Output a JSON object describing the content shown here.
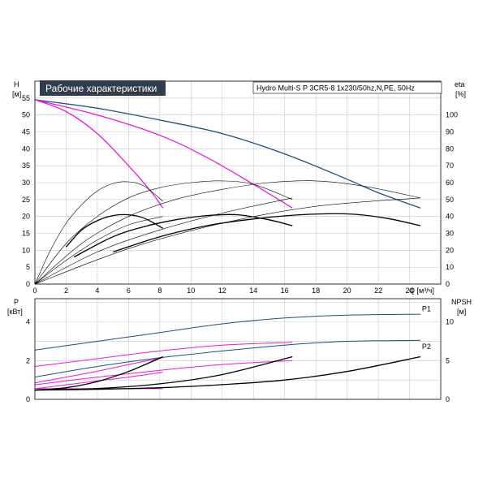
{
  "chart_data": [
    {
      "type": "line",
      "title": "Рабочие характеристики",
      "subtitle": "Hydro Multi-S P 3CR5-8 1x230/50hz,N,PE, 50Hz",
      "xlabel": "Q [м³/ч]",
      "ylabel": "H",
      "ylabel_unit": "[м]",
      "y2label": "eta",
      "y2label_unit": "[%]",
      "xlim": [
        0,
        26
      ],
      "ylim": [
        0,
        60
      ],
      "y2lim": [
        0,
        120
      ],
      "x_ticks": [
        "0",
        "2",
        "4",
        "6",
        "8",
        "10",
        "12",
        "14",
        "16",
        "18",
        "20",
        "22",
        "24"
      ],
      "y_ticks": [
        "0",
        "5",
        "10",
        "15",
        "20",
        "25",
        "30",
        "35",
        "40",
        "45",
        "50",
        "55"
      ],
      "y2_ticks": [
        "0",
        "10",
        "20",
        "30",
        "40",
        "50",
        "60",
        "70",
        "80",
        "90",
        "100"
      ],
      "grid": true,
      "colors": {
        "h_max": "#1d4e7e",
        "h_part": "#e81cd6",
        "eta": "#000000"
      },
      "series": [
        {
          "axis": "left",
          "role": "h_max",
          "x": [
            0,
            4,
            8,
            12,
            16,
            20,
            22,
            24.7
          ],
          "y": [
            54.5,
            52,
            48.5,
            44.5,
            38.5,
            31,
            27,
            22.5
          ]
        },
        {
          "axis": "left",
          "role": "h_part",
          "x": [
            0,
            4,
            8,
            11,
            14,
            16.5
          ],
          "y": [
            54.5,
            50,
            44,
            37.5,
            29.5,
            22.5
          ]
        },
        {
          "axis": "left",
          "role": "h_part",
          "x": [
            0,
            2,
            4,
            6,
            7.5,
            8.2
          ],
          "y": [
            54.5,
            51,
            44.5,
            35,
            27,
            22.5
          ]
        },
        {
          "axis": "right",
          "role": "eta",
          "thin": false,
          "x": [
            2.5,
            5,
            7,
            9,
            11,
            13,
            15,
            16.5
          ],
          "y": [
            16,
            28,
            34,
            38,
            40.5,
            41,
            38,
            34.5
          ]
        },
        {
          "axis": "right",
          "role": "eta",
          "thin": false,
          "x": [
            5,
            8,
            11,
            14,
            17,
            20,
            22.5,
            24.7
          ],
          "y": [
            19,
            28,
            34.5,
            38.5,
            41,
            41.5,
            39,
            34.5
          ]
        },
        {
          "axis": "right",
          "role": "eta",
          "thin": false,
          "x": [
            2,
            3,
            4,
            5,
            6,
            7,
            8.2
          ],
          "y": [
            22,
            32,
            37.5,
            40.5,
            41,
            39,
            33
          ]
        },
        {
          "axis": "right",
          "role": "eta",
          "thin": true,
          "x": [
            0,
            1,
            2,
            3,
            4,
            5,
            6,
            7,
            8.2
          ],
          "y": [
            0,
            20,
            36,
            47,
            55,
            59.5,
            60.5,
            58,
            49
          ]
        },
        {
          "axis": "right",
          "role": "eta",
          "thin": true,
          "x": [
            0,
            2,
            4,
            6,
            8,
            10,
            12,
            14,
            16.5
          ],
          "y": [
            0,
            24,
            40,
            51,
            57,
            60,
            61,
            59,
            50
          ]
        },
        {
          "axis": "right",
          "role": "eta",
          "thin": true,
          "x": [
            0,
            3,
            6,
            9,
            12,
            15,
            18,
            21,
            24.7
          ],
          "y": [
            0,
            24,
            40,
            50,
            56,
            60,
            61,
            58,
            51
          ]
        },
        {
          "axis": "right",
          "role": "eta",
          "thin": true,
          "x": [
            0,
            2,
            4,
            6,
            8.2
          ],
          "y": [
            0,
            14,
            26,
            35,
            40
          ]
        },
        {
          "axis": "right",
          "role": "eta",
          "thin": true,
          "x": [
            0,
            4,
            8,
            12,
            16.5
          ],
          "y": [
            0,
            19,
            32,
            42,
            51
          ]
        },
        {
          "axis": "right",
          "role": "eta",
          "thin": true,
          "x": [
            0,
            6,
            12,
            18,
            24.7
          ],
          "y": [
            0,
            21,
            36,
            46,
            51
          ]
        }
      ]
    },
    {
      "type": "line",
      "ylabel": "P",
      "ylabel_unit": "[кВт]",
      "y2label": "NPSH",
      "y2label_unit": "[м]",
      "xlim": [
        0,
        26
      ],
      "ylim": [
        0,
        5.2
      ],
      "y2lim": [
        0,
        13
      ],
      "y_ticks": [
        "0",
        "2",
        "4"
      ],
      "y2_ticks": [
        "0",
        "5",
        "10"
      ],
      "grid": true,
      "annotations": [
        {
          "text": "P1",
          "x": 24.8,
          "y": 4.55,
          "axis": "left"
        },
        {
          "text": "P2",
          "x": 24.8,
          "y": 2.6,
          "axis": "left"
        }
      ],
      "series": [
        {
          "axis": "left",
          "role": "p_max",
          "x": [
            0,
            4,
            8,
            12,
            16,
            20,
            24.7
          ],
          "y": [
            2.55,
            3.0,
            3.45,
            3.9,
            4.2,
            4.35,
            4.4
          ]
        },
        {
          "axis": "left",
          "role": "p_max",
          "x": [
            0,
            4,
            8,
            12,
            16,
            20,
            24.7
          ],
          "y": [
            1.15,
            1.7,
            2.15,
            2.5,
            2.8,
            3.0,
            3.05
          ]
        },
        {
          "axis": "left",
          "role": "p_part",
          "x": [
            0,
            4,
            8,
            12,
            16.5
          ],
          "y": [
            1.7,
            2.1,
            2.5,
            2.8,
            2.95
          ]
        },
        {
          "axis": "left",
          "role": "p_part",
          "x": [
            0,
            4,
            8,
            12,
            16.5
          ],
          "y": [
            0.75,
            1.15,
            1.5,
            1.8,
            2.0
          ]
        },
        {
          "axis": "left",
          "role": "p_part",
          "x": [
            0,
            2,
            4,
            6,
            8.2
          ],
          "y": [
            0.85,
            1.15,
            1.45,
            1.8,
            2.15
          ]
        },
        {
          "axis": "left",
          "role": "p_part",
          "x": [
            0,
            2,
            4,
            6,
            8.2
          ],
          "y": [
            0.55,
            0.75,
            0.95,
            1.15,
            1.4
          ]
        },
        {
          "axis": "left",
          "role": "p_part",
          "x": [
            0,
            8.2
          ],
          "y": [
            0.55,
            0.55
          ]
        },
        {
          "axis": "right",
          "role": "npsh",
          "x": [
            0,
            4,
            8,
            12,
            16,
            20,
            24.7
          ],
          "y": [
            1.2,
            1.3,
            1.5,
            1.9,
            2.5,
            3.6,
            5.5
          ]
        },
        {
          "axis": "right",
          "role": "npsh",
          "x": [
            0,
            4,
            8,
            12,
            16.5
          ],
          "y": [
            1.2,
            1.4,
            2.0,
            3.2,
            5.5
          ]
        },
        {
          "axis": "right",
          "role": "npsh",
          "x": [
            0,
            2,
            4,
            6,
            8.2
          ],
          "y": [
            1.2,
            1.5,
            2.3,
            3.6,
            5.5
          ]
        }
      ]
    }
  ]
}
